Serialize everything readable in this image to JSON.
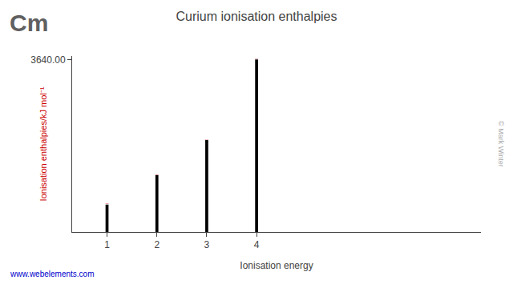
{
  "chart_data": {
    "type": "bar",
    "title": "Curium ionisation enthalpies",
    "xlabel": "Ionisation energy",
    "ylabel": "Ionisation enthalpies/kJ mol⁻¹",
    "x": [
      1,
      2,
      3,
      4
    ],
    "values": [
      578,
      1200,
      1940,
      3640
    ],
    "color": "#000000",
    "xlim": [
      0.3,
      8.5
    ],
    "xticks": [
      1,
      2,
      3,
      4
    ],
    "ylim": [
      0,
      3712.8
    ],
    "yticks": [
      {
        "value": 3640,
        "label": "3640.00"
      }
    ],
    "data_labels": true,
    "grid": false,
    "annotations": [
      "Cm",
      "© Mark Winter",
      "www.webelements.com"
    ]
  }
}
